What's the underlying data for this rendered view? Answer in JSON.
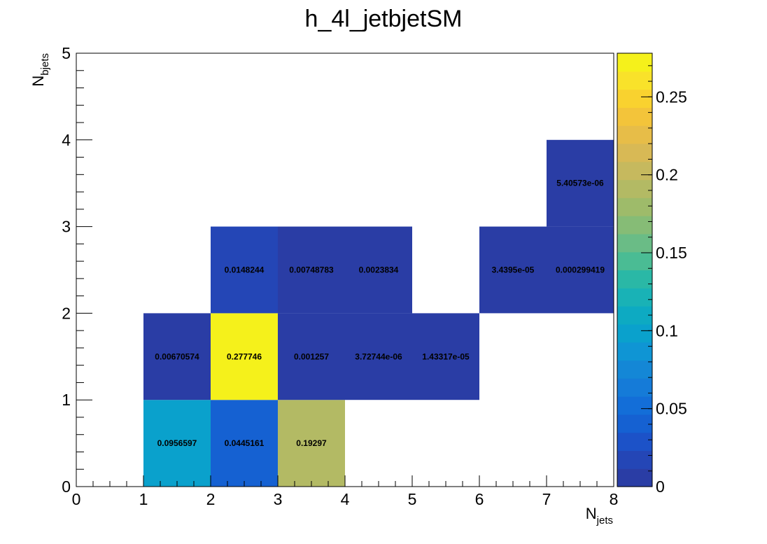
{
  "chart_data": {
    "type": "heatmap",
    "title": "h_4l_jetbjetSM",
    "xlabel_main": "N",
    "xlabel_sub": "jets",
    "ylabel_main": "N",
    "ylabel_sub": "bjets",
    "xlim": [
      0,
      8
    ],
    "ylim": [
      0,
      5
    ],
    "x_ticks": [
      "0",
      "1",
      "2",
      "3",
      "4",
      "5",
      "6",
      "7",
      "8"
    ],
    "y_ticks": [
      "0",
      "1",
      "2",
      "3",
      "4",
      "5"
    ],
    "zlim": [
      0,
      0.278
    ],
    "z_ticks": [
      "0",
      "0.05",
      "0.1",
      "0.15",
      "0.2",
      "0.25"
    ],
    "z_tick_values": [
      0,
      0.05,
      0.1,
      0.15,
      0.2,
      0.25
    ],
    "palette": [
      "#2a3da5",
      "#2446b6",
      "#1c52c8",
      "#1561d2",
      "#136ed8",
      "#157bd8",
      "#1487d6",
      "#0f95d4",
      "#0aa1cc",
      "#0daac2",
      "#19b2b6",
      "#2ab8a6",
      "#4abc94",
      "#6abc86",
      "#86bc76",
      "#9ebb6a",
      "#b3ba64",
      "#c6b95e",
      "#d8b955",
      "#e7bd48",
      "#f3c43a",
      "#f9d22f",
      "#f9e22a",
      "#f5f11b"
    ],
    "cells": [
      {
        "x": 1,
        "y": 0,
        "value": 0.0956597,
        "label": "0.0956597"
      },
      {
        "x": 2,
        "y": 0,
        "value": 0.0445161,
        "label": "0.0445161"
      },
      {
        "x": 3,
        "y": 0,
        "value": 0.19297,
        "label": "0.19297"
      },
      {
        "x": 1,
        "y": 1,
        "value": 0.00670574,
        "label": "0.00670574"
      },
      {
        "x": 2,
        "y": 1,
        "value": 0.277746,
        "label": "0.277746"
      },
      {
        "x": 3,
        "y": 1,
        "value": 0.001257,
        "label": "0.001257"
      },
      {
        "x": 4,
        "y": 1,
        "value": 3.72744e-06,
        "label": "3.72744e-06"
      },
      {
        "x": 5,
        "y": 1,
        "value": 1.43317e-05,
        "label": "1.43317e-05"
      },
      {
        "x": 2,
        "y": 2,
        "value": 0.0148244,
        "label": "0.0148244"
      },
      {
        "x": 3,
        "y": 2,
        "value": 0.00748783,
        "label": "0.00748783"
      },
      {
        "x": 4,
        "y": 2,
        "value": 0.0023834,
        "label": "0.0023834"
      },
      {
        "x": 6,
        "y": 2,
        "value": 3.4395e-05,
        "label": "3.4395e-05"
      },
      {
        "x": 7,
        "y": 2,
        "value": 0.000299419,
        "label": "0.000299419"
      },
      {
        "x": 7,
        "y": 3,
        "value": 5.40573e-06,
        "label": "5.40573e-06"
      }
    ]
  }
}
